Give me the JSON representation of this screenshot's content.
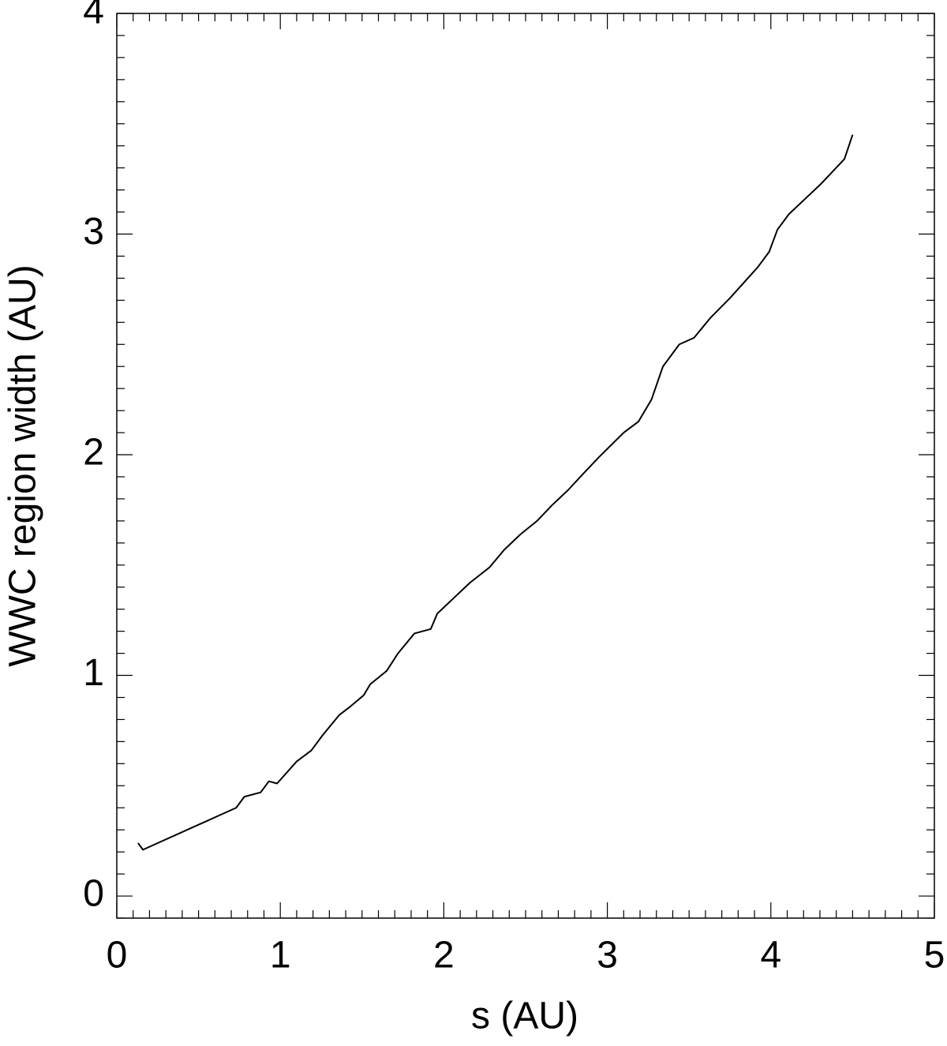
{
  "chart_data": {
    "type": "line",
    "xlabel": "s (AU)",
    "ylabel": "WWC region width (AU)",
    "xlim": [
      0,
      5
    ],
    "xticks": [
      0,
      1,
      2,
      3,
      4,
      5
    ],
    "ylim": [
      -0.1,
      4
    ],
    "yticks": [
      0,
      1,
      2,
      3,
      4
    ],
    "series": [
      {
        "color": "#000000",
        "x": [
          0.13,
          0.16,
          0.64,
          0.73,
          0.78,
          0.88,
          0.93,
          0.98,
          1.1,
          1.19,
          1.26,
          1.36,
          1.43,
          1.51,
          1.55,
          1.65,
          1.72,
          1.82,
          1.92,
          1.96,
          2.06,
          2.16,
          2.28,
          2.37,
          2.47,
          2.57,
          2.66,
          2.76,
          2.86,
          2.95,
          3.1,
          3.19,
          3.27,
          3.34,
          3.44,
          3.53,
          3.63,
          3.75,
          3.92,
          3.99,
          4.04,
          4.11,
          4.21,
          4.31,
          4.45,
          4.5
        ],
        "values": [
          0.24,
          0.21,
          0.37,
          0.4,
          0.45,
          0.47,
          0.52,
          0.51,
          0.61,
          0.66,
          0.73,
          0.82,
          0.86,
          0.91,
          0.96,
          1.02,
          1.1,
          1.19,
          1.21,
          1.28,
          1.35,
          1.42,
          1.49,
          1.57,
          1.64,
          1.7,
          1.77,
          1.84,
          1.92,
          1.99,
          2.1,
          2.15,
          2.25,
          2.4,
          2.5,
          2.53,
          2.62,
          2.71,
          2.85,
          2.92,
          3.02,
          3.09,
          3.16,
          3.23,
          3.34,
          3.45
        ]
      }
    ]
  }
}
